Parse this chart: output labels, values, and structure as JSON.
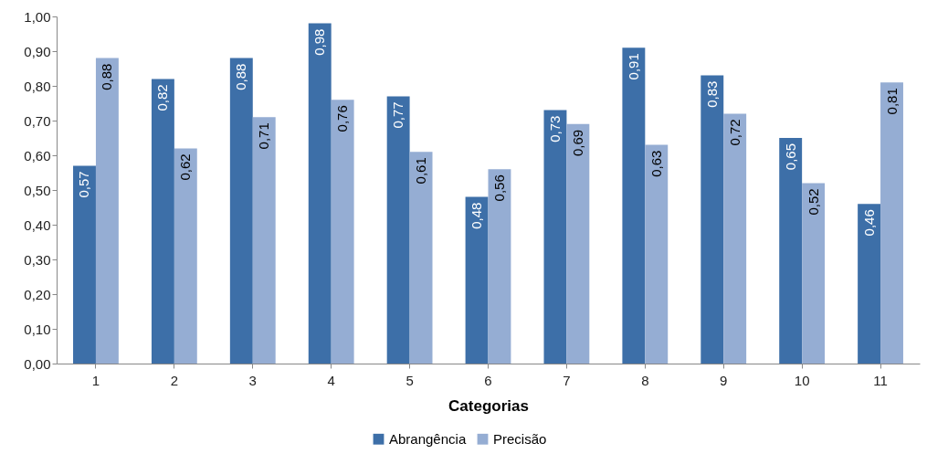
{
  "chart_data": {
    "type": "bar",
    "xlabel": "Categorias",
    "categories": [
      "1",
      "2",
      "3",
      "4",
      "5",
      "6",
      "7",
      "8",
      "9",
      "10",
      "11"
    ],
    "series": [
      {
        "name": "Abrangência",
        "color": "#3d6fa8",
        "values": [
          0.57,
          0.82,
          0.88,
          0.98,
          0.77,
          0.48,
          0.73,
          0.91,
          0.83,
          0.65,
          0.46
        ],
        "value_labels": [
          "0,57",
          "0,82",
          "0,88",
          "0,98",
          "0,77",
          "0,48",
          "0,73",
          "0,91",
          "0,83",
          "0,65",
          "0,46"
        ]
      },
      {
        "name": "Precisão",
        "color": "#95add3",
        "values": [
          0.88,
          0.62,
          0.71,
          0.76,
          0.61,
          0.56,
          0.69,
          0.63,
          0.72,
          0.52,
          0.81
        ],
        "value_labels": [
          "0,88",
          "0,62",
          "0,71",
          "0,76",
          "0,61",
          "0,56",
          "0,69",
          "0,63",
          "0,72",
          "0,52",
          "0,81"
        ]
      }
    ],
    "ylim": [
      0,
      1
    ],
    "yticks": [
      {
        "value": 0,
        "label": "0,00"
      },
      {
        "value": 0.1,
        "label": "0,10"
      },
      {
        "value": 0.2,
        "label": "0,20"
      },
      {
        "value": 0.3,
        "label": "0,30"
      },
      {
        "value": 0.4,
        "label": "0,40"
      },
      {
        "value": 0.5,
        "label": "0,50"
      },
      {
        "value": 0.6,
        "label": "0,60"
      },
      {
        "value": 0.7,
        "label": "0,70"
      },
      {
        "value": 0.8,
        "label": "0,80"
      },
      {
        "value": 0.9,
        "label": "0,90"
      },
      {
        "value": 1,
        "label": "1,00"
      }
    ],
    "grid": false,
    "legend": "bottom"
  }
}
